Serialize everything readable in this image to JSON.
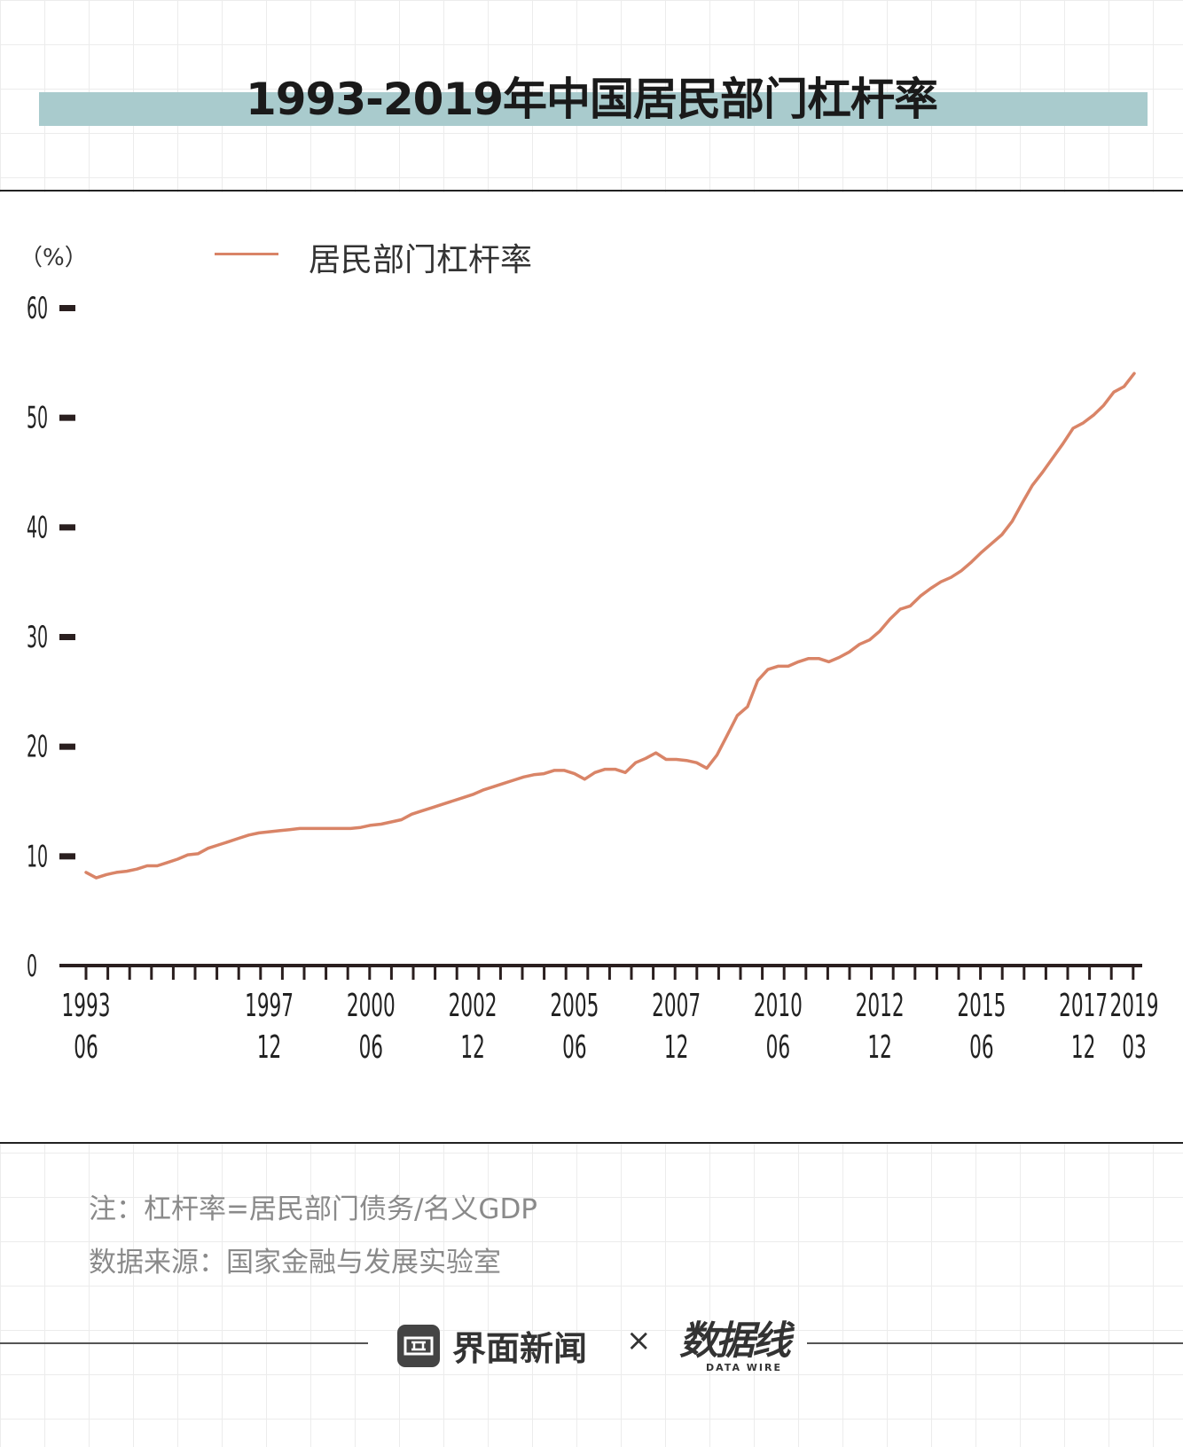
{
  "title": "1993-2019年中国居民部门杠杆率",
  "notes": {
    "definition": "注：杠杆率=居民部门债务/名义GDP",
    "source": "数据来源：国家金融与发展实验室"
  },
  "brand": {
    "name": "界面新闻",
    "separator": "×",
    "partner": "数据线",
    "partner_sub": "DATA WIRE"
  },
  "colors": {
    "line": "#d98467",
    "title_band": "#a9cbcd",
    "axis": "#2a1f1f"
  },
  "chart_data": {
    "type": "line",
    "title": "1993-2019年中国居民部门杠杆率",
    "ylabel": "（%）",
    "xlabel": "",
    "ylim": [
      0,
      60
    ],
    "yticks": [
      0,
      10,
      20,
      30,
      40,
      50,
      60
    ],
    "grid": false,
    "legend_position": "top-left",
    "x_tick_labels": [
      {
        "year": "1993",
        "month": "06"
      },
      {
        "year": "1997",
        "month": "12"
      },
      {
        "year": "2000",
        "month": "06"
      },
      {
        "year": "2002",
        "month": "12"
      },
      {
        "year": "2005",
        "month": "06"
      },
      {
        "year": "2007",
        "month": "12"
      },
      {
        "year": "2010",
        "month": "06"
      },
      {
        "year": "2012",
        "month": "12"
      },
      {
        "year": "2015",
        "month": "06"
      },
      {
        "year": "2017",
        "month": "12"
      },
      {
        "year": "2019",
        "month": "03"
      }
    ],
    "series": [
      {
        "name": "居民部门杠杆率",
        "x": [
          "1993-06",
          "1993-09",
          "1993-12",
          "1994-03",
          "1994-06",
          "1994-09",
          "1994-12",
          "1995-03",
          "1995-06",
          "1995-09",
          "1995-12",
          "1996-03",
          "1996-06",
          "1996-09",
          "1996-12",
          "1997-03",
          "1997-06",
          "1997-09",
          "1997-12",
          "1998-03",
          "1998-06",
          "1998-09",
          "1998-12",
          "1999-03",
          "1999-06",
          "1999-09",
          "1999-12",
          "2000-03",
          "2000-06",
          "2000-09",
          "2000-12",
          "2001-03",
          "2001-06",
          "2001-09",
          "2001-12",
          "2002-03",
          "2002-06",
          "2002-09",
          "2002-12",
          "2003-03",
          "2003-06",
          "2003-09",
          "2003-12",
          "2004-03",
          "2004-06",
          "2004-09",
          "2004-12",
          "2005-03",
          "2005-06",
          "2005-09",
          "2005-12",
          "2006-03",
          "2006-06",
          "2006-09",
          "2006-12",
          "2007-03",
          "2007-06",
          "2007-09",
          "2007-12",
          "2008-03",
          "2008-06",
          "2008-09",
          "2008-12",
          "2009-03",
          "2009-06",
          "2009-09",
          "2009-12",
          "2010-03",
          "2010-06",
          "2010-09",
          "2010-12",
          "2011-03",
          "2011-06",
          "2011-09",
          "2011-12",
          "2012-03",
          "2012-06",
          "2012-09",
          "2012-12",
          "2013-03",
          "2013-06",
          "2013-09",
          "2013-12",
          "2014-03",
          "2014-06",
          "2014-09",
          "2014-12",
          "2015-03",
          "2015-06",
          "2015-09",
          "2015-12",
          "2016-03",
          "2016-06",
          "2016-09",
          "2016-12",
          "2017-03",
          "2017-06",
          "2017-09",
          "2017-12",
          "2018-03",
          "2018-06",
          "2018-09",
          "2018-12",
          "2019-03"
        ],
        "values": [
          8.5,
          8.0,
          8.3,
          8.5,
          8.6,
          8.8,
          9.1,
          9.1,
          9.4,
          9.7,
          10.1,
          10.2,
          10.7,
          11.0,
          11.3,
          11.6,
          11.9,
          12.1,
          12.2,
          12.3,
          12.4,
          12.5,
          12.5,
          12.5,
          12.5,
          12.5,
          12.5,
          12.6,
          12.8,
          12.9,
          13.1,
          13.3,
          13.8,
          14.1,
          14.4,
          14.7,
          15.0,
          15.3,
          15.6,
          16.0,
          16.3,
          16.6,
          16.9,
          17.2,
          17.4,
          17.5,
          17.8,
          17.8,
          17.5,
          17.0,
          17.6,
          17.9,
          17.9,
          17.6,
          18.5,
          18.9,
          19.4,
          18.8,
          18.8,
          18.7,
          18.5,
          18.0,
          19.2,
          21.0,
          22.8,
          23.6,
          26.0,
          27.0,
          27.3,
          27.3,
          27.7,
          28.0,
          28.0,
          27.7,
          28.1,
          28.6,
          29.3,
          29.7,
          30.5,
          31.6,
          32.5,
          32.8,
          33.7,
          34.4,
          35.0,
          35.4,
          36.0,
          36.8,
          37.7,
          38.5,
          39.3,
          40.5,
          42.2,
          43.8,
          45.0,
          46.3,
          47.6,
          49.0,
          49.5,
          50.2,
          51.1,
          52.3,
          52.8,
          54.0
        ]
      }
    ]
  }
}
